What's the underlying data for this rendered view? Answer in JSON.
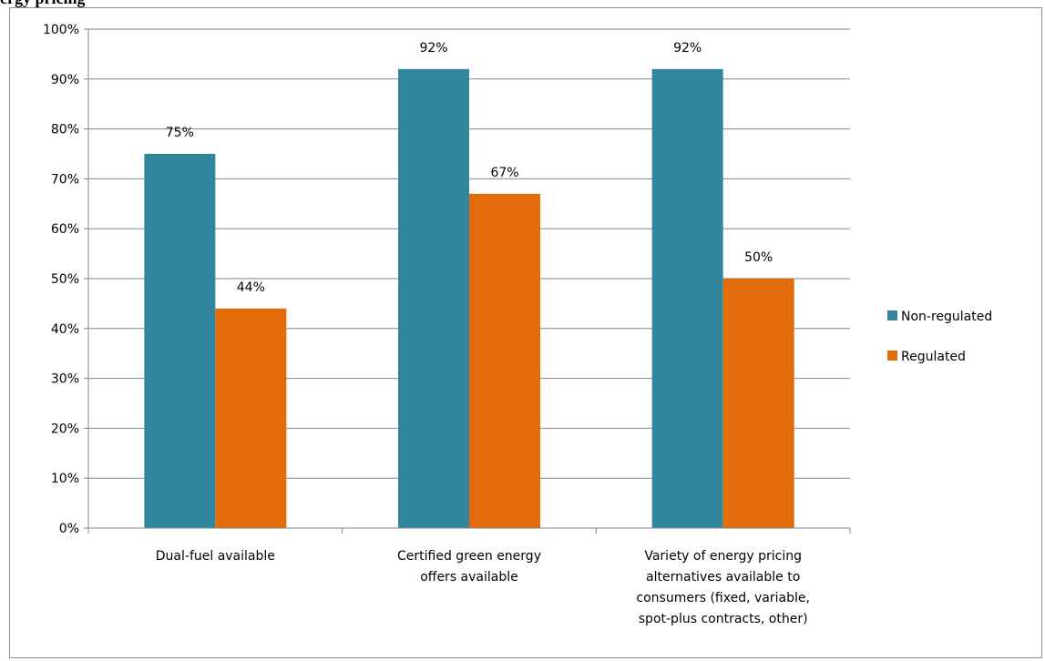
{
  "page_title": "ergy pricing",
  "chart_data": {
    "type": "bar",
    "categories": [
      [
        "Dual-fuel available"
      ],
      [
        "Certified green energy",
        "offers available"
      ],
      [
        "Variety of energy pricing",
        "alternatives available to",
        "consumers (fixed, variable,",
        "spot-plus contracts, other)"
      ]
    ],
    "series": [
      {
        "name": "Non-regulated",
        "values": [
          75,
          92,
          92
        ],
        "labels": [
          "75%",
          "92%",
          "92%"
        ],
        "color": "#31859c"
      },
      {
        "name": "Regulated",
        "values": [
          44,
          67,
          50
        ],
        "labels": [
          "44%",
          "67%",
          "50%"
        ],
        "color": "#e36c0a"
      }
    ],
    "ylim": [
      0,
      100
    ],
    "yticks": [
      "0%",
      "10%",
      "20%",
      "30%",
      "40%",
      "50%",
      "60%",
      "70%",
      "80%",
      "90%",
      "100%"
    ],
    "grid": true,
    "legend": "right",
    "axis_color": "#868686",
    "grid_color": "#868686"
  }
}
